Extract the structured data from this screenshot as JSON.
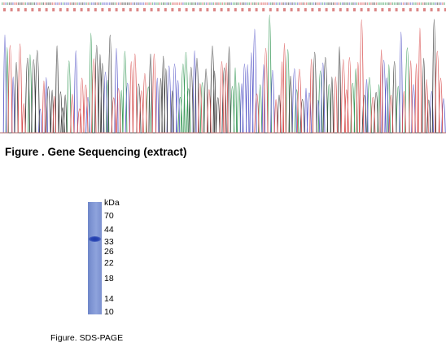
{
  "sequencing": {
    "caption": "Figure . Gene Sequencing (extract)",
    "base_colors": {
      "A": "#3a9a5a",
      "C": "#5a5ac8",
      "G": "#3a3a3a",
      "T": "#d85050"
    }
  },
  "sds_page": {
    "unit_label": "kDa",
    "markers": [
      "70",
      "44",
      "33",
      "26",
      "22",
      "18",
      "14",
      "10"
    ],
    "band_marker": "33",
    "caption": "Figure. SDS-PAGE",
    "lane_color": "#8095d4",
    "band_color": "#2440b0"
  }
}
